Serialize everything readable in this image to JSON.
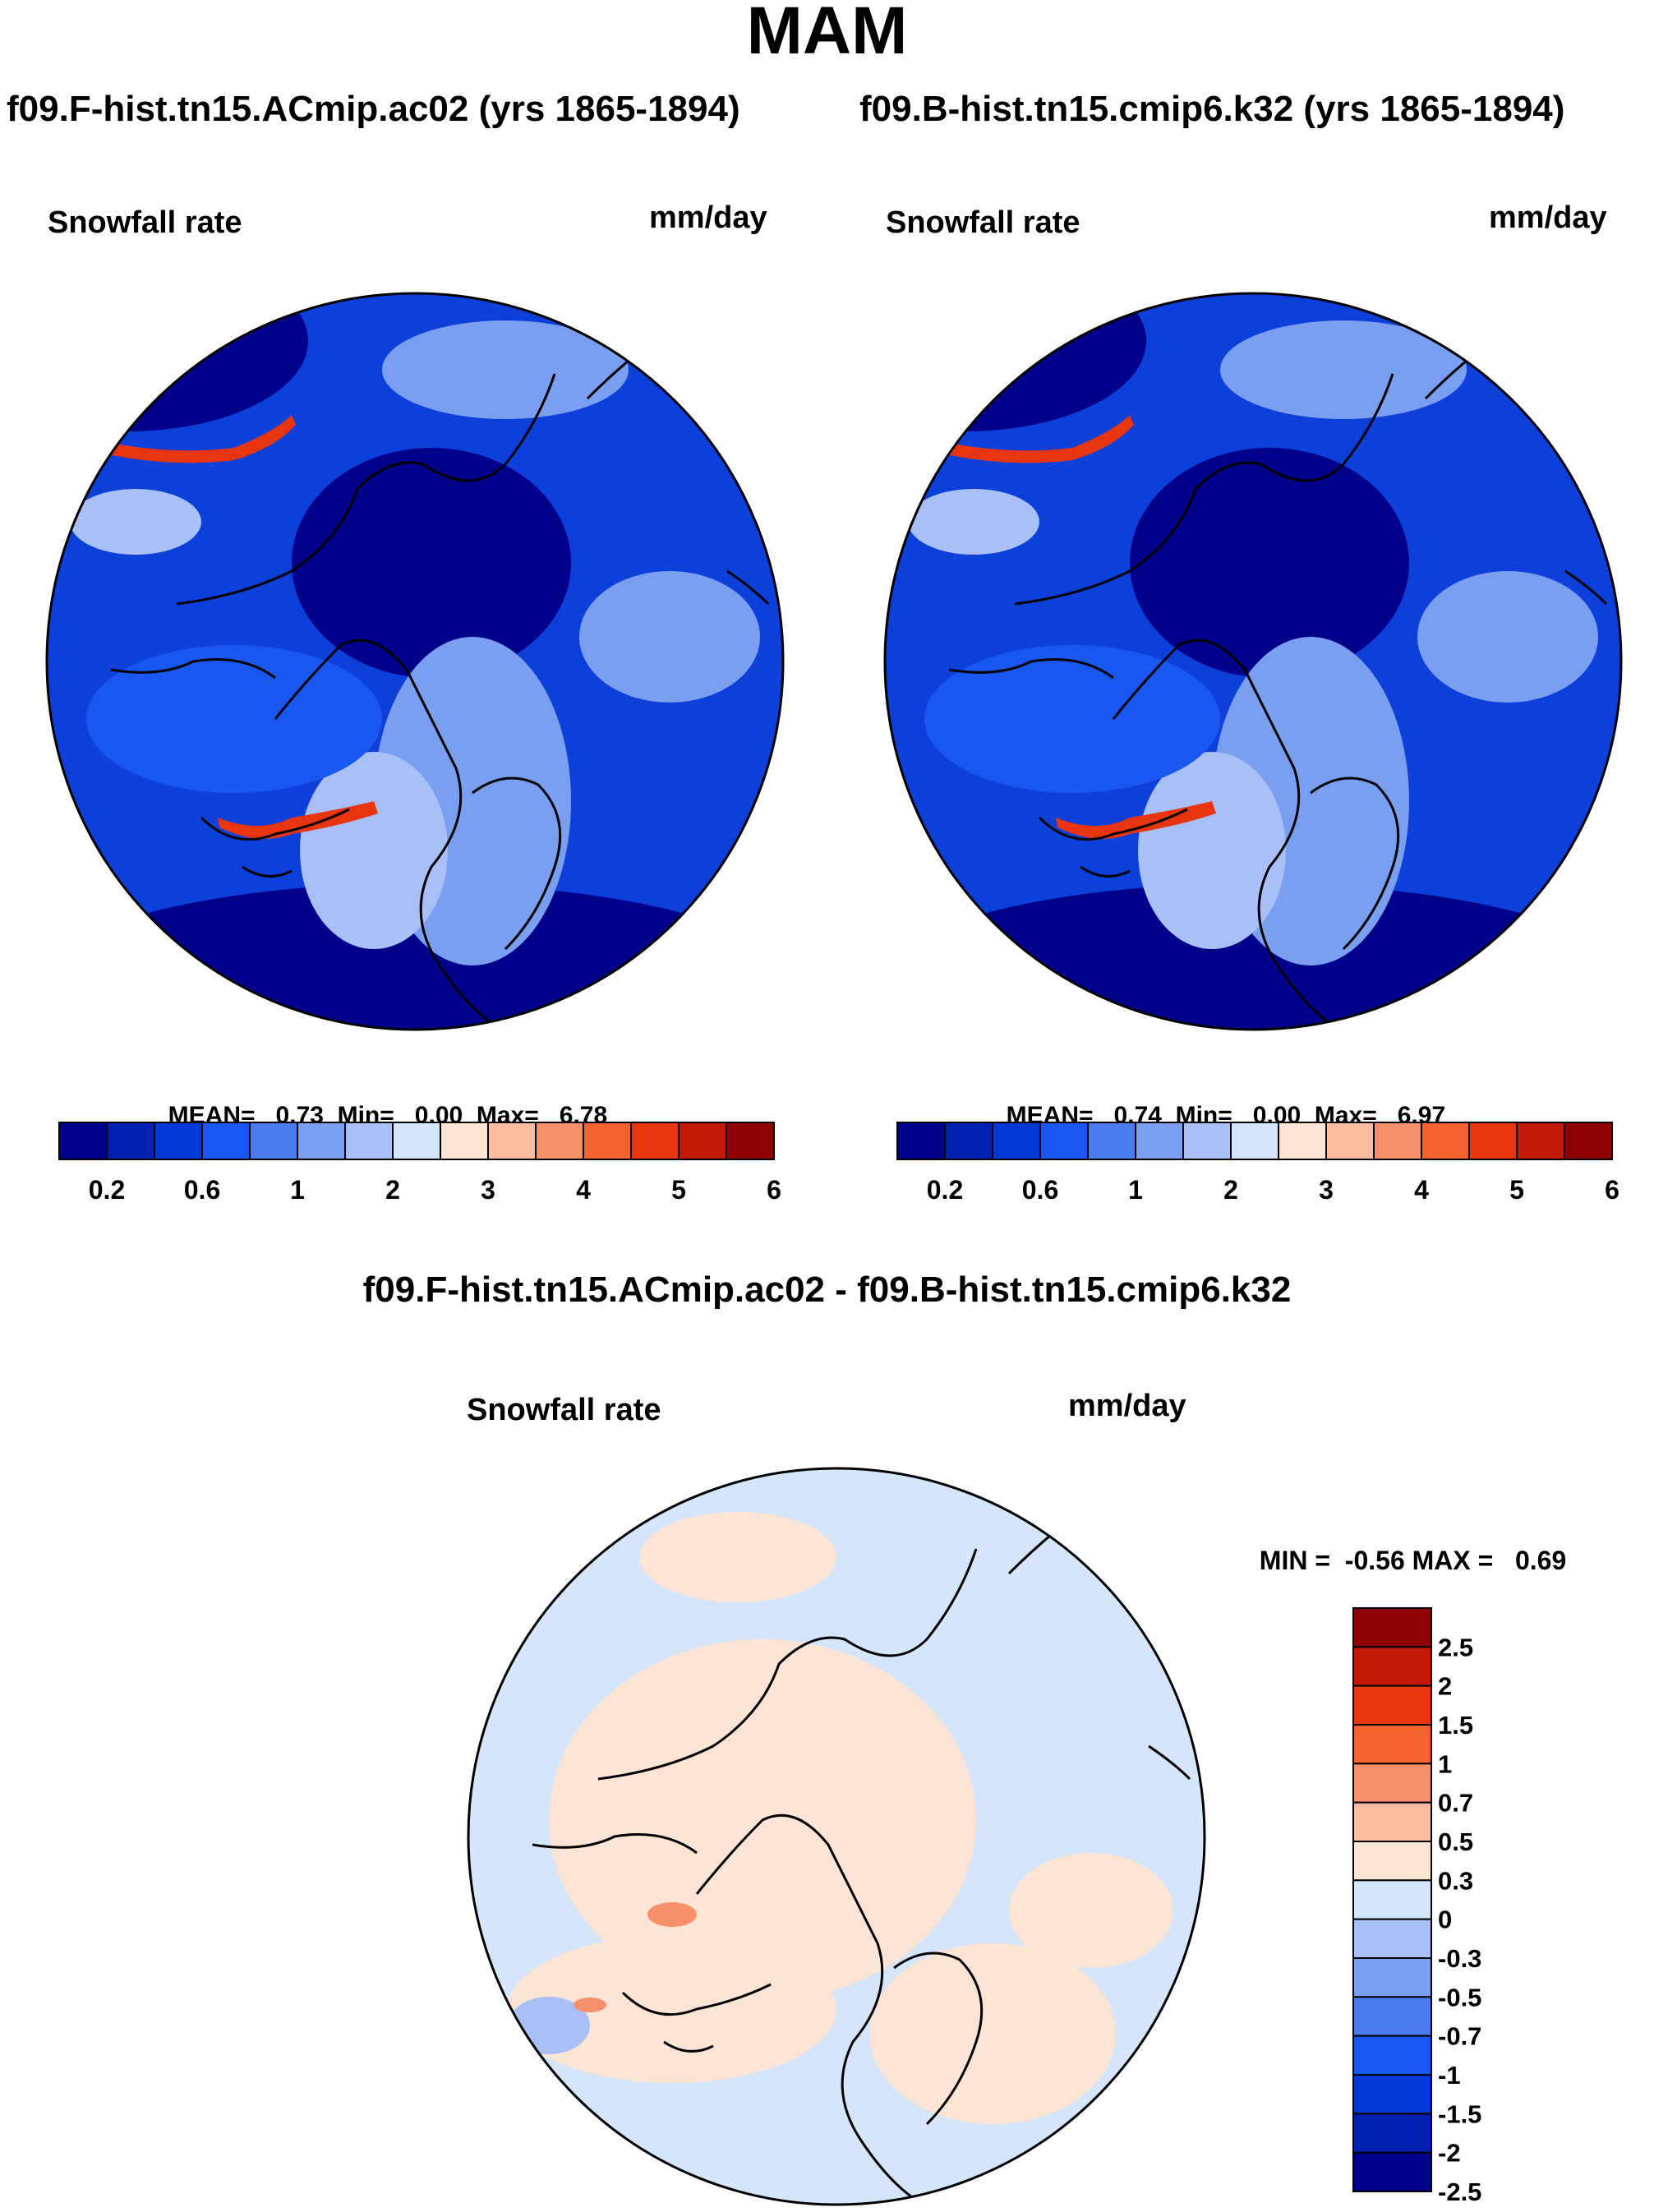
{
  "figure": {
    "season": "MAM",
    "case1_title": "f09.F-hist.tn15.ACmip.ac02 (yrs 1865-1894)",
    "case2_title": "f09.B-hist.tn15.cmip6.k32 (yrs 1865-1894)",
    "difference_title": "f09.F-hist.tn15.ACmip.ac02 - f09.B-hist.tn15.cmip6.k32"
  },
  "panels": {
    "case1": {
      "variable": "Snowfall rate",
      "units": "mm/day",
      "stats": {
        "mean_label": "MEAN=",
        "mean": "0.73",
        "min_label": "Min=",
        "min": "0.00",
        "max_label": "Max=",
        "max": "6.78"
      }
    },
    "case2": {
      "variable": "Snowfall rate",
      "units": "mm/day",
      "stats": {
        "mean_label": "MEAN=",
        "mean": "0.74",
        "min_label": "Min=",
        "min": "0.00",
        "max_label": "Max=",
        "max": "6.97"
      }
    },
    "difference": {
      "variable": "Snowfall rate",
      "units": "mm/day",
      "stats": {
        "min_label": "MIN =",
        "min": "-0.56",
        "max_label": "MAX =",
        "max": "0.69"
      }
    }
  },
  "colorbars": {
    "abs_colors": [
      "#00008b",
      "#0020b0",
      "#0038d6",
      "#1a56f0",
      "#4a7cf0",
      "#7a9ff0",
      "#a8c0f5",
      "#d6e6fa",
      "#fde5d6",
      "#fbbca1",
      "#f8906d",
      "#f4622f",
      "#e83510",
      "#c01a06",
      "#8b0000"
    ],
    "abs_labels": [
      "0.2",
      "0.6",
      "1",
      "2",
      "3",
      "4",
      "5",
      "6"
    ],
    "diff_colors": [
      "#8b0000",
      "#c01a06",
      "#e83510",
      "#f4622f",
      "#f8906d",
      "#fbbca1",
      "#fde5d6",
      "#d6e6fa",
      "#a8c0f5",
      "#7a9ff0",
      "#4a7cf0",
      "#1a56f0",
      "#0038d6",
      "#0020b0",
      "#00008b"
    ],
    "diff_labels": [
      "2.5",
      "2",
      "1.5",
      "1",
      "0.7",
      "0.5",
      "0.3",
      "0",
      "-0.3",
      "-0.5",
      "-0.7",
      "-1",
      "-1.5",
      "-2",
      "-2.5"
    ]
  },
  "map_colors": {
    "abs_background": "#0d3fd9",
    "abs_deep": "#00008b",
    "abs_mid": "#1a56f0",
    "abs_light": "#7a9ff0",
    "abs_pale": "#a8c0f5",
    "abs_high": "#e83510",
    "diff_background": "#d6e6fa",
    "diff_positive": "#fde5d6",
    "diff_negative": "#a8c0f5",
    "diff_high": "#f8906d",
    "coast": "#000000"
  }
}
